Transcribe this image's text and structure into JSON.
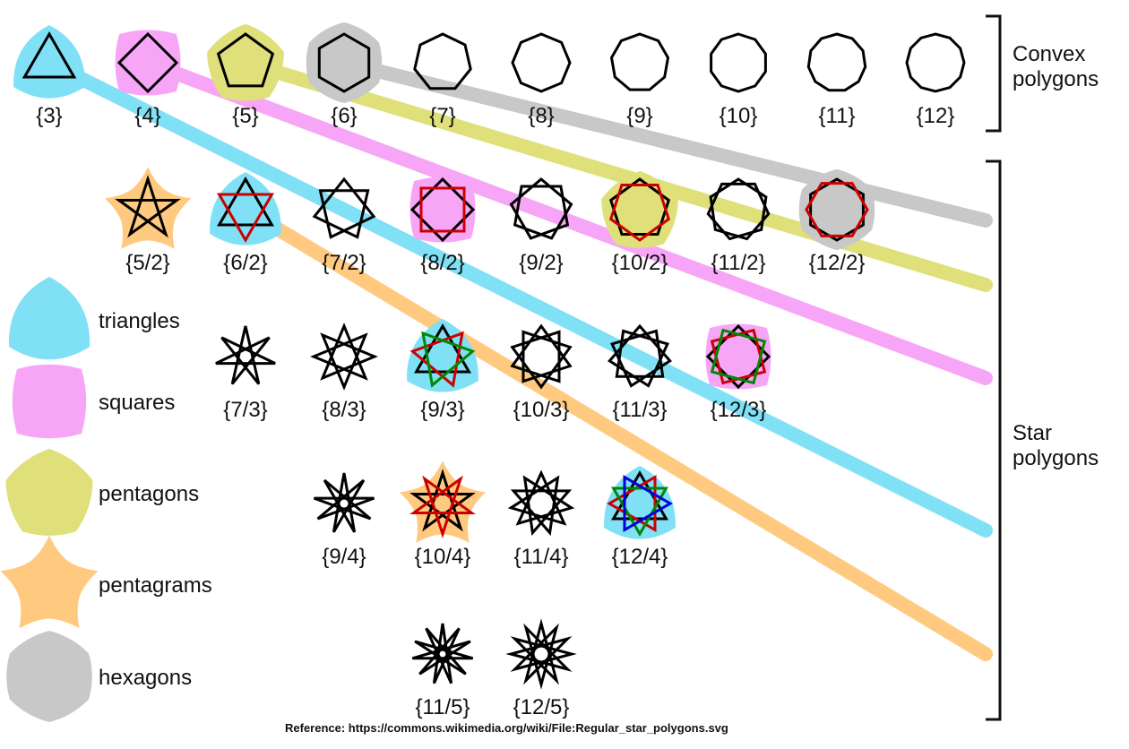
{
  "groups": {
    "convex": "Convex\npolygons",
    "star": "Star\npolygons"
  },
  "legend": [
    {
      "label": "triangles",
      "shape": "reuleaux-3",
      "color": "#7fe0f6"
    },
    {
      "label": "squares",
      "shape": "bulged-4",
      "color": "#f7a6f7"
    },
    {
      "label": "pentagons",
      "shape": "bulged-5",
      "color": "#dfe07a"
    },
    {
      "label": "pentagrams",
      "shape": "star-5",
      "color": "#ffc97f"
    },
    {
      "label": "hexagons",
      "shape": "bulged-6",
      "color": "#c8c8c8"
    }
  ],
  "polygons": [
    {
      "label": "{3}",
      "n": 3,
      "k": 1,
      "bg": "triangles"
    },
    {
      "label": "{4}",
      "n": 4,
      "k": 1,
      "bg": "squares"
    },
    {
      "label": "{5}",
      "n": 5,
      "k": 1,
      "bg": "pentagons"
    },
    {
      "label": "{6}",
      "n": 6,
      "k": 1,
      "bg": "hexagons"
    },
    {
      "label": "{7}",
      "n": 7,
      "k": 1
    },
    {
      "label": "{8}",
      "n": 8,
      "k": 1
    },
    {
      "label": "{9}",
      "n": 9,
      "k": 1
    },
    {
      "label": "{10}",
      "n": 10,
      "k": 1
    },
    {
      "label": "{11}",
      "n": 11,
      "k": 1
    },
    {
      "label": "{12}",
      "n": 12,
      "k": 1
    },
    {
      "label": "{5/2}",
      "n": 5,
      "k": 2,
      "bg": "pentagrams"
    },
    {
      "label": "{6/2}",
      "n": 6,
      "k": 2,
      "bg": "triangles",
      "colors": [
        "#000000",
        "#cc0000"
      ]
    },
    {
      "label": "{7/2}",
      "n": 7,
      "k": 2
    },
    {
      "label": "{8/2}",
      "n": 8,
      "k": 2,
      "bg": "squares",
      "colors": [
        "#000000",
        "#cc0000"
      ]
    },
    {
      "label": "{9/2}",
      "n": 9,
      "k": 2
    },
    {
      "label": "{10/2}",
      "n": 10,
      "k": 2,
      "bg": "pentagons",
      "colors": [
        "#000000",
        "#cc0000"
      ]
    },
    {
      "label": "{11/2}",
      "n": 11,
      "k": 2
    },
    {
      "label": "{12/2}",
      "n": 12,
      "k": 2,
      "bg": "hexagons",
      "colors": [
        "#000000",
        "#cc0000"
      ]
    },
    {
      "label": "{7/3}",
      "n": 7,
      "k": 3
    },
    {
      "label": "{8/3}",
      "n": 8,
      "k": 3
    },
    {
      "label": "{9/3}",
      "n": 9,
      "k": 3,
      "bg": "triangles",
      "colors": [
        "#000000",
        "#cc0000",
        "#008800"
      ]
    },
    {
      "label": "{10/3}",
      "n": 10,
      "k": 3
    },
    {
      "label": "{11/3}",
      "n": 11,
      "k": 3
    },
    {
      "label": "{12/3}",
      "n": 12,
      "k": 3,
      "bg": "squares",
      "colors": [
        "#000000",
        "#cc0000",
        "#008800"
      ]
    },
    {
      "label": "{9/4}",
      "n": 9,
      "k": 4
    },
    {
      "label": "{10/4}",
      "n": 10,
      "k": 4,
      "bg": "pentagrams",
      "colors": [
        "#000000",
        "#cc0000"
      ]
    },
    {
      "label": "{11/4}",
      "n": 11,
      "k": 4
    },
    {
      "label": "{12/4}",
      "n": 12,
      "k": 4,
      "bg": "triangles",
      "colors": [
        "#000000",
        "#cc0000",
        "#008800",
        "#0000dd"
      ]
    },
    {
      "label": "{11/5}",
      "n": 11,
      "k": 5
    },
    {
      "label": "{12/5}",
      "n": 12,
      "k": 5
    }
  ],
  "bands": [
    {
      "family": "hexagons",
      "color": "#c8c8c8"
    },
    {
      "family": "pentagons",
      "color": "#dfe07a"
    },
    {
      "family": "squares",
      "color": "#f7a6f7"
    },
    {
      "family": "triangles",
      "color": "#7fe0f6"
    },
    {
      "family": "pentagrams",
      "color": "#ffc97f"
    }
  ],
  "reference": "Reference: https://commons.wikimedia.org/wiki/File:Regular_star_polygons.svg"
}
